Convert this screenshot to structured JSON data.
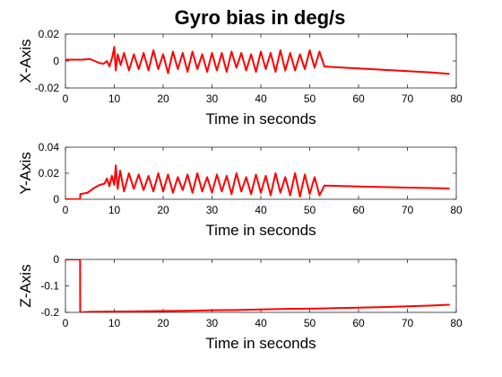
{
  "figure": {
    "title": "Gyro bias in deg/s"
  },
  "chart_data": [
    {
      "type": "line",
      "title": "Gyro bias in deg/s",
      "xlabel": "Time in seconds",
      "ylabel": "X-Axis",
      "xlim": [
        0,
        80
      ],
      "ylim": [
        -0.02,
        0.02
      ],
      "xticks": [
        0,
        10,
        20,
        30,
        40,
        50,
        60,
        70,
        80
      ],
      "yticks": [
        0.02,
        0,
        -0.02
      ],
      "xtick_labels": [
        "0",
        "10",
        "20",
        "30",
        "40",
        "50",
        "60",
        "70",
        "80"
      ],
      "ytick_labels": [
        "0.02",
        "0",
        "-0.02"
      ],
      "grid": false,
      "series": [
        {
          "color": "#ff0000",
          "x": [
            0,
            3.5,
            5,
            6,
            7,
            7.8,
            8.5,
            9,
            9.6,
            10,
            10.3,
            10.7,
            11.3,
            12,
            13,
            14,
            15,
            16,
            17,
            18,
            19,
            20,
            21,
            22,
            23,
            24,
            25,
            26,
            27,
            28,
            29,
            30,
            31,
            32,
            33,
            34,
            35,
            36,
            37,
            38,
            39,
            40,
            41,
            42,
            43,
            44,
            45,
            46,
            47,
            48,
            49,
            50,
            51,
            52,
            53,
            55,
            60,
            65,
            70,
            75,
            78.5
          ],
          "y": [
            0.001,
            0.001,
            0.0015,
            0.0,
            -0.0015,
            -0.002,
            0.0,
            -0.004,
            0.003,
            0.0105,
            -0.007,
            0.005,
            -0.003,
            0.006,
            -0.007,
            0.005,
            -0.006,
            0.006,
            -0.007,
            0.008,
            -0.006,
            0.005,
            -0.009,
            0.007,
            -0.006,
            0.006,
            -0.008,
            0.007,
            -0.006,
            0.005,
            -0.008,
            0.006,
            -0.007,
            0.006,
            -0.008,
            0.007,
            -0.005,
            0.006,
            -0.007,
            0.005,
            -0.008,
            0.007,
            -0.006,
            0.006,
            -0.008,
            0.008,
            -0.007,
            0.006,
            -0.007,
            0.005,
            -0.006,
            0.008,
            -0.005,
            0.007,
            -0.004,
            -0.0045,
            -0.0055,
            -0.0065,
            -0.0075,
            -0.0085,
            -0.0095
          ]
        }
      ]
    },
    {
      "type": "line",
      "title": "",
      "xlabel": "Time in seconds",
      "ylabel": "Y-Axis",
      "xlim": [
        0,
        80
      ],
      "ylim": [
        0,
        0.04
      ],
      "xticks": [
        0,
        10,
        20,
        30,
        40,
        50,
        60,
        70,
        80
      ],
      "yticks": [
        0.04,
        0.02,
        0
      ],
      "xtick_labels": [
        "0",
        "10",
        "20",
        "30",
        "40",
        "50",
        "60",
        "70",
        "80"
      ],
      "ytick_labels": [
        "0.04",
        "0.02",
        "0"
      ],
      "grid": false,
      "series": [
        {
          "color": "#ff0000",
          "x": [
            0,
            3.0,
            3.05,
            4.5,
            6,
            7,
            8,
            8.5,
            9,
            9.5,
            10,
            10.3,
            10.7,
            11.2,
            12,
            13,
            14,
            15,
            16,
            17,
            18,
            19,
            20,
            21,
            22,
            23,
            24,
            25,
            26,
            27,
            28,
            29,
            30,
            31,
            32,
            33,
            34,
            35,
            36,
            37,
            38,
            39,
            40,
            41,
            42,
            43,
            44,
            45,
            46,
            47,
            48,
            49,
            50,
            51,
            52,
            53,
            55,
            60,
            65,
            70,
            75,
            78.5
          ],
          "y": [
            0.0,
            0.0,
            0.004,
            0.005,
            0.009,
            0.011,
            0.012,
            0.016,
            0.01,
            0.018,
            0.011,
            0.026,
            0.008,
            0.022,
            0.006,
            0.02,
            0.008,
            0.019,
            0.007,
            0.018,
            0.006,
            0.02,
            0.006,
            0.019,
            0.005,
            0.017,
            0.007,
            0.019,
            0.005,
            0.02,
            0.006,
            0.017,
            0.005,
            0.019,
            0.006,
            0.018,
            0.004,
            0.02,
            0.006,
            0.017,
            0.004,
            0.019,
            0.005,
            0.018,
            0.003,
            0.02,
            0.005,
            0.017,
            0.003,
            0.02,
            0.002,
            0.019,
            0.004,
            0.017,
            0.003,
            0.0105,
            0.0103,
            0.0098,
            0.0094,
            0.009,
            0.0086,
            0.0083
          ]
        }
      ]
    },
    {
      "type": "line",
      "title": "",
      "xlabel": "Time in seconds",
      "ylabel": "Z-Axis",
      "xlim": [
        0,
        80
      ],
      "ylim": [
        -0.2,
        0.0
      ],
      "xticks": [
        0,
        10,
        20,
        30,
        40,
        50,
        60,
        70,
        80
      ],
      "yticks": [
        0,
        -0.1,
        -0.2
      ],
      "xtick_labels": [
        "0",
        "10",
        "20",
        "30",
        "40",
        "50",
        "60",
        "70",
        "80"
      ],
      "ytick_labels": [
        "0",
        "-0.1",
        "-0.2"
      ],
      "grid": false,
      "series": [
        {
          "color": "#ff0000",
          "x": [
            0,
            3.0,
            3.02,
            5,
            10,
            15,
            20,
            25,
            30,
            35,
            40,
            45,
            50,
            53,
            55,
            60,
            65,
            70,
            75,
            78.5
          ],
          "y": [
            0.0,
            0.0,
            -0.2,
            -0.198,
            -0.197,
            -0.196,
            -0.195,
            -0.194,
            -0.192,
            -0.191,
            -0.189,
            -0.187,
            -0.186,
            -0.185,
            -0.184,
            -0.182,
            -0.18,
            -0.177,
            -0.174,
            -0.171
          ]
        }
      ]
    }
  ]
}
